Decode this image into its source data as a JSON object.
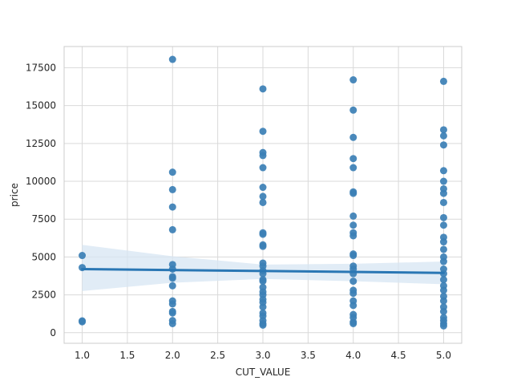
{
  "chart_data": {
    "type": "scatter",
    "title": "",
    "xlabel": "CUT_VALUE",
    "ylabel": "price",
    "xlim": [
      0.8,
      5.2
    ],
    "ylim": [
      -700,
      18900
    ],
    "xticks": [
      1.0,
      1.5,
      2.0,
      2.5,
      3.0,
      3.5,
      4.0,
      4.5,
      5.0
    ],
    "xtick_labels": [
      "1.0",
      "1.5",
      "2.0",
      "2.5",
      "3.0",
      "3.5",
      "4.0",
      "4.5",
      "5.0"
    ],
    "yticks": [
      0,
      2500,
      5000,
      7500,
      10000,
      12500,
      15000,
      17500
    ],
    "ytick_labels": [
      "0",
      "2500",
      "5000",
      "7500",
      "10000",
      "12500",
      "15000",
      "17500"
    ],
    "grid": true,
    "colors": {
      "points": "#3b7fb5",
      "line": "#2a77b4",
      "band": "#d7e6f3",
      "grid": "#d9d9d9",
      "spine": "#cccccc"
    },
    "points": [
      {
        "x": 1.0,
        "y": 5100
      },
      {
        "x": 1.0,
        "y": 4300
      },
      {
        "x": 1.0,
        "y": 780
      },
      {
        "x": 1.0,
        "y": 720
      },
      {
        "x": 2.0,
        "y": 18050
      },
      {
        "x": 2.0,
        "y": 10600
      },
      {
        "x": 2.0,
        "y": 9450
      },
      {
        "x": 2.0,
        "y": 8300
      },
      {
        "x": 2.0,
        "y": 6800
      },
      {
        "x": 2.0,
        "y": 4500
      },
      {
        "x": 2.0,
        "y": 4200
      },
      {
        "x": 2.0,
        "y": 3700
      },
      {
        "x": 2.0,
        "y": 3600
      },
      {
        "x": 2.0,
        "y": 3100
      },
      {
        "x": 2.0,
        "y": 2100
      },
      {
        "x": 2.0,
        "y": 1900
      },
      {
        "x": 2.0,
        "y": 1400
      },
      {
        "x": 2.0,
        "y": 1300
      },
      {
        "x": 2.0,
        "y": 800
      },
      {
        "x": 2.0,
        "y": 600
      },
      {
        "x": 3.0,
        "y": 16100
      },
      {
        "x": 3.0,
        "y": 13300
      },
      {
        "x": 3.0,
        "y": 11900
      },
      {
        "x": 3.0,
        "y": 11700
      },
      {
        "x": 3.0,
        "y": 10900
      },
      {
        "x": 3.0,
        "y": 9600
      },
      {
        "x": 3.0,
        "y": 9000
      },
      {
        "x": 3.0,
        "y": 8600
      },
      {
        "x": 3.0,
        "y": 6600
      },
      {
        "x": 3.0,
        "y": 6500
      },
      {
        "x": 3.0,
        "y": 5800
      },
      {
        "x": 3.0,
        "y": 5700
      },
      {
        "x": 3.0,
        "y": 4600
      },
      {
        "x": 3.0,
        "y": 4400
      },
      {
        "x": 3.0,
        "y": 4100
      },
      {
        "x": 3.0,
        "y": 3900
      },
      {
        "x": 3.0,
        "y": 3500
      },
      {
        "x": 3.0,
        "y": 3400
      },
      {
        "x": 3.0,
        "y": 3000
      },
      {
        "x": 3.0,
        "y": 2700
      },
      {
        "x": 3.0,
        "y": 2500
      },
      {
        "x": 3.0,
        "y": 2200
      },
      {
        "x": 3.0,
        "y": 2000
      },
      {
        "x": 3.0,
        "y": 1700
      },
      {
        "x": 3.0,
        "y": 1300
      },
      {
        "x": 3.0,
        "y": 1100
      },
      {
        "x": 3.0,
        "y": 800
      },
      {
        "x": 3.0,
        "y": 600
      },
      {
        "x": 3.0,
        "y": 500
      },
      {
        "x": 4.0,
        "y": 16700
      },
      {
        "x": 4.0,
        "y": 14700
      },
      {
        "x": 4.0,
        "y": 12900
      },
      {
        "x": 4.0,
        "y": 11500
      },
      {
        "x": 4.0,
        "y": 10900
      },
      {
        "x": 4.0,
        "y": 9300
      },
      {
        "x": 4.0,
        "y": 9200
      },
      {
        "x": 4.0,
        "y": 7700
      },
      {
        "x": 4.0,
        "y": 7100
      },
      {
        "x": 4.0,
        "y": 6600
      },
      {
        "x": 4.0,
        "y": 6400
      },
      {
        "x": 4.0,
        "y": 5200
      },
      {
        "x": 4.0,
        "y": 5100
      },
      {
        "x": 4.0,
        "y": 4400
      },
      {
        "x": 4.0,
        "y": 4200
      },
      {
        "x": 4.0,
        "y": 3900
      },
      {
        "x": 4.0,
        "y": 3400
      },
      {
        "x": 4.0,
        "y": 2800
      },
      {
        "x": 4.0,
        "y": 2600
      },
      {
        "x": 4.0,
        "y": 2100
      },
      {
        "x": 4.0,
        "y": 1800
      },
      {
        "x": 4.0,
        "y": 1200
      },
      {
        "x": 4.0,
        "y": 1000
      },
      {
        "x": 4.0,
        "y": 700
      },
      {
        "x": 4.0,
        "y": 600
      },
      {
        "x": 5.0,
        "y": 16600
      },
      {
        "x": 5.0,
        "y": 13400
      },
      {
        "x": 5.0,
        "y": 13000
      },
      {
        "x": 5.0,
        "y": 12400
      },
      {
        "x": 5.0,
        "y": 10700
      },
      {
        "x": 5.0,
        "y": 10000
      },
      {
        "x": 5.0,
        "y": 9500
      },
      {
        "x": 5.0,
        "y": 9200
      },
      {
        "x": 5.0,
        "y": 8600
      },
      {
        "x": 5.0,
        "y": 7600
      },
      {
        "x": 5.0,
        "y": 7100
      },
      {
        "x": 5.0,
        "y": 6300
      },
      {
        "x": 5.0,
        "y": 6000
      },
      {
        "x": 5.0,
        "y": 5500
      },
      {
        "x": 5.0,
        "y": 5000
      },
      {
        "x": 5.0,
        "y": 4700
      },
      {
        "x": 5.0,
        "y": 4200
      },
      {
        "x": 5.0,
        "y": 3900
      },
      {
        "x": 5.0,
        "y": 3500
      },
      {
        "x": 5.0,
        "y": 3100
      },
      {
        "x": 5.0,
        "y": 2800
      },
      {
        "x": 5.0,
        "y": 2400
      },
      {
        "x": 5.0,
        "y": 2100
      },
      {
        "x": 5.0,
        "y": 1700
      },
      {
        "x": 5.0,
        "y": 1400
      },
      {
        "x": 5.0,
        "y": 1000
      },
      {
        "x": 5.0,
        "y": 800
      },
      {
        "x": 5.0,
        "y": 600
      },
      {
        "x": 5.0,
        "y": 450
      }
    ],
    "regression": {
      "line": [
        {
          "x": 1.0,
          "y": 4200
        },
        {
          "x": 5.0,
          "y": 3950
        }
      ],
      "ci_upper": [
        {
          "x": 1.0,
          "y": 5800
        },
        {
          "x": 2.0,
          "y": 5050
        },
        {
          "x": 3.0,
          "y": 4500
        },
        {
          "x": 4.0,
          "y": 4550
        },
        {
          "x": 5.0,
          "y": 4700
        }
      ],
      "ci_lower": [
        {
          "x": 1.0,
          "y": 2750
        },
        {
          "x": 2.0,
          "y": 3300
        },
        {
          "x": 3.0,
          "y": 3550
        },
        {
          "x": 4.0,
          "y": 3400
        },
        {
          "x": 5.0,
          "y": 3200
        }
      ]
    }
  }
}
